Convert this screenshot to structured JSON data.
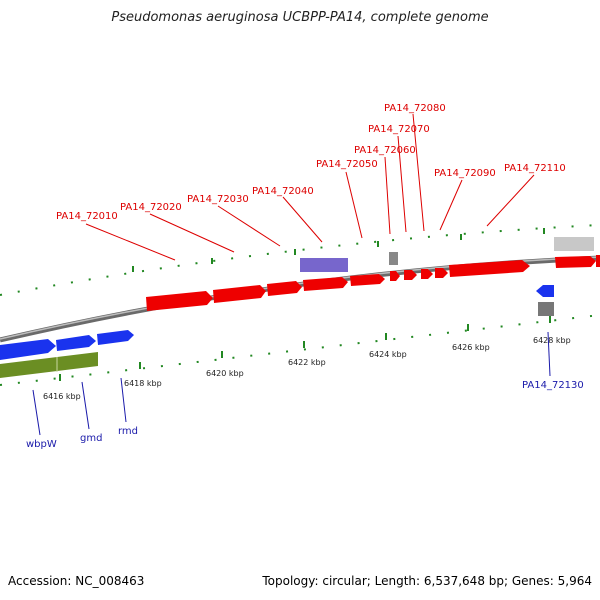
{
  "title": "Pseudomonas aeruginosa UCBPP-PA14, complete genome",
  "footer": {
    "accession": "Accession: NC_008463",
    "summary": "Topology: circular; Length: 6,537,648 bp; Genes: 5,964"
  },
  "colors": {
    "cds_forward": "#ee0000",
    "cds_reverse": "#1a33ee",
    "cds_green": "#6b8e23",
    "purple_feature": "#7766cc",
    "grey_feature": "#888888",
    "backbone": "#8a8a8a",
    "tick": "#228822"
  },
  "ticks": [
    "6416 kbp",
    "6418 kbp",
    "6420 kbp",
    "6422 kbp",
    "6424 kbp",
    "6426 kbp",
    "6428 kbp"
  ],
  "upper_labels": [
    "PA14_72010",
    "PA14_72020",
    "PA14_72030",
    "PA14_72040",
    "PA14_72050",
    "PA14_72060",
    "PA14_72070",
    "PA14_72080",
    "PA14_72090",
    "PA14_72110"
  ],
  "lower_labels": [
    "wbpW",
    "gmd",
    "rmd",
    "PA14_72130"
  ]
}
